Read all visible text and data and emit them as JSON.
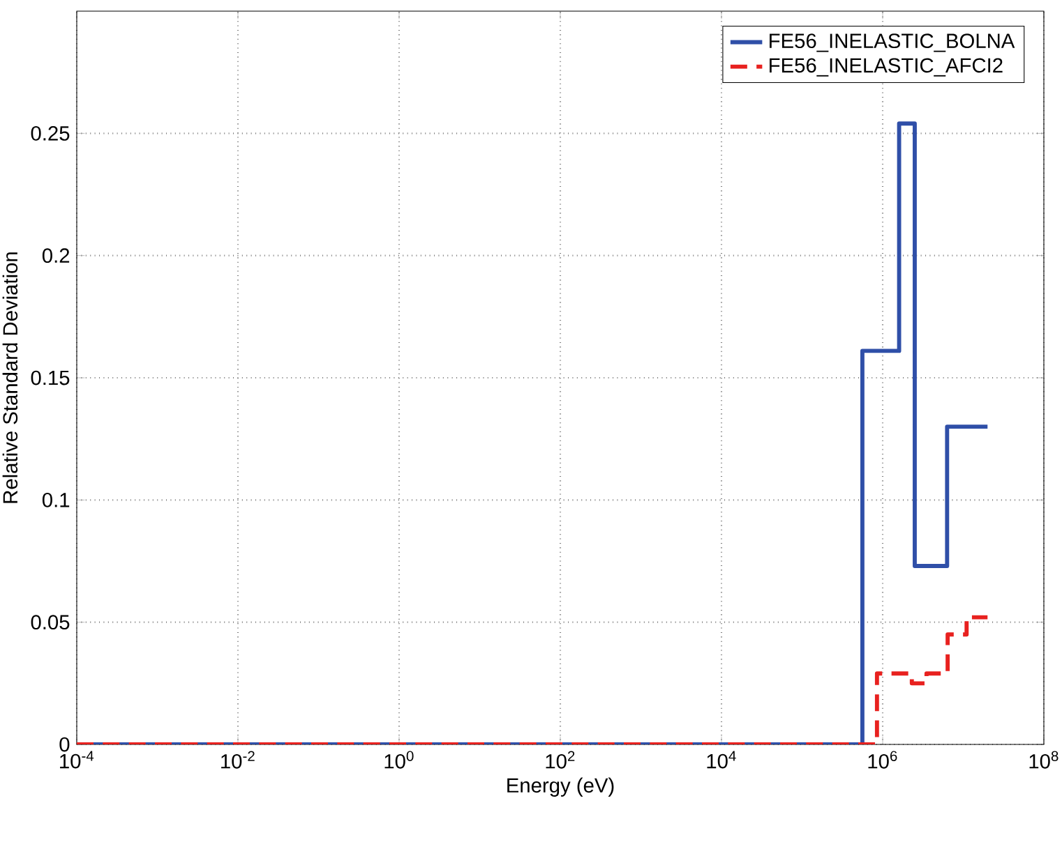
{
  "chart_data": {
    "type": "step",
    "xlabel": "Energy (eV)",
    "ylabel": "Relative Standard Deviation",
    "log": "x",
    "grid": true,
    "legend": "top right",
    "xlim": [
      0.0001,
      100000000
    ],
    "ylim": [
      0,
      0.3
    ],
    "xticks": [
      {
        "value": 0.0001,
        "label": "10$^{-4}$"
      },
      {
        "value": 0.01,
        "label": "10$^{-2}$"
      },
      {
        "value": 1,
        "label": "10$^{0}$"
      },
      {
        "value": 100,
        "label": "10$^{2}$"
      },
      {
        "value": 10000,
        "label": "10$^{4}$"
      },
      {
        "value": 1000000,
        "label": "10$^{6}$"
      },
      {
        "value": 100000000,
        "label": "10$^{8}$"
      }
    ],
    "yticks": [
      0,
      0.05,
      0.1,
      0.15,
      0.2,
      0.25
    ],
    "series": [
      {
        "name": "FE56_INELASTIC_BOLNA",
        "color": "#2f4fa8",
        "line_style": "solid",
        "x": [
          0.0001,
          560000,
          1600000,
          2500000,
          6300000,
          20000000
        ],
        "values": [
          0,
          0.161,
          0.254,
          0.073,
          0.13,
          0.13
        ]
      },
      {
        "name": "FE56_INELASTIC_AFCI2",
        "color": "#e8211f",
        "line_style": "dashed",
        "x": [
          0.0001,
          850000,
          2300000,
          3500000,
          6400000,
          11000000,
          20000000
        ],
        "values": [
          0,
          0.029,
          0.025,
          0.029,
          0.045,
          0.052,
          0.052
        ]
      }
    ]
  }
}
